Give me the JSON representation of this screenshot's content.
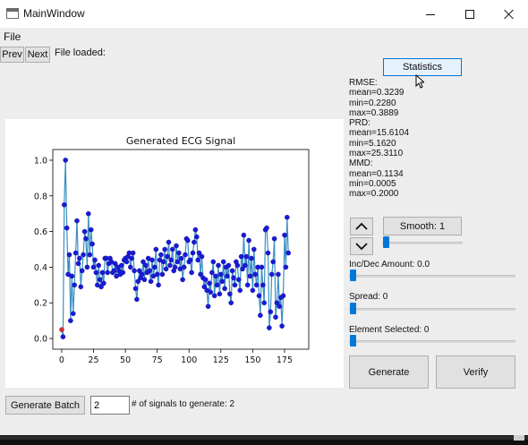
{
  "window": {
    "title": "MainWindow",
    "controls": [
      "minimize-icon",
      "maximize-icon",
      "close-icon"
    ]
  },
  "menu": {
    "file": "File"
  },
  "toolbar": {
    "prev": "Prev",
    "next": "Next",
    "file_loaded": "File loaded:"
  },
  "statistics_button": "Statistics",
  "stats": [
    "RMSE:",
    "mean=0.3239",
    "min=0.2280",
    "max=0.3889",
    "PRD:",
    "mean=15.6104",
    "min=5.1620",
    "max=25.3110",
    "MMD:",
    "mean=0.1134",
    "min=0.0005",
    "max=0.2000"
  ],
  "controls": {
    "smooth_label": "Smooth: 1",
    "smooth_value": 1,
    "incdec_label": "Inc/Dec Amount: 0.0",
    "incdec_value": 0.0,
    "spread_label": "Spread: 0",
    "spread_value": 0,
    "element_label": "Element Selected: 0",
    "element_value": 0,
    "generate": "Generate",
    "verify": "Verify"
  },
  "batch": {
    "button": "Generate Batch",
    "count": "2",
    "label": "# of signals to generate: 2"
  },
  "colors": {
    "line": "#3b8fc4",
    "marker": "#1a1ad6",
    "selected_marker": "#d03030"
  },
  "chart_data": {
    "type": "line",
    "title": "Generated ECG Signal",
    "xlabel": "",
    "ylabel": "",
    "xlim": [
      -7,
      194
    ],
    "ylim": [
      -0.06,
      1.06
    ],
    "xticks": [
      0,
      25,
      50,
      75,
      100,
      125,
      150,
      175
    ],
    "yticks": [
      0.0,
      0.2,
      0.4,
      0.6,
      0.8,
      1.0
    ],
    "selected_index": 0,
    "series": [
      {
        "values": [
          0.05,
          0.01,
          0.75,
          1.0,
          0.62,
          0.36,
          0.47,
          0.1,
          0.35,
          0.14,
          0.3,
          0.48,
          0.66,
          0.42,
          0.45,
          0.29,
          0.38,
          0.47,
          0.6,
          0.56,
          0.4,
          0.7,
          0.47,
          0.61,
          0.53,
          0.4,
          0.44,
          0.37,
          0.3,
          0.41,
          0.33,
          0.29,
          0.37,
          0.31,
          0.45,
          0.45,
          0.37,
          0.42,
          0.45,
          0.43,
          0.37,
          0.38,
          0.42,
          0.35,
          0.4,
          0.38,
          0.36,
          0.41,
          0.37,
          0.44,
          0.45,
          0.43,
          0.46,
          0.48,
          0.4,
          0.45,
          0.48,
          0.38,
          0.28,
          0.22,
          0.32,
          0.38,
          0.34,
          0.36,
          0.43,
          0.33,
          0.41,
          0.37,
          0.45,
          0.38,
          0.32,
          0.44,
          0.35,
          0.4,
          0.5,
          0.36,
          0.3,
          0.44,
          0.47,
          0.36,
          0.43,
          0.5,
          0.39,
          0.46,
          0.54,
          0.41,
          0.44,
          0.5,
          0.38,
          0.4,
          0.52,
          0.43,
          0.48,
          0.39,
          0.45,
          0.33,
          0.4,
          0.47,
          0.56,
          0.55,
          0.43,
          0.44,
          0.37,
          0.48,
          0.54,
          0.61,
          0.57,
          0.44,
          0.48,
          0.36,
          0.46,
          0.34,
          0.29,
          0.33,
          0.27,
          0.18,
          0.31,
          0.26,
          0.37,
          0.43,
          0.24,
          0.35,
          0.3,
          0.41,
          0.25,
          0.36,
          0.32,
          0.43,
          0.28,
          0.4,
          0.35,
          0.41,
          0.25,
          0.2,
          0.38,
          0.34,
          0.3,
          0.43,
          0.41,
          0.33,
          0.27,
          0.46,
          0.39,
          0.58,
          0.41,
          0.46,
          0.3,
          0.55,
          0.35,
          0.45,
          0.27,
          0.5,
          0.36,
          0.3,
          0.4,
          0.24,
          0.13,
          0.4,
          0.3,
          0.2,
          0.61,
          0.62,
          0.48,
          0.06,
          0.15,
          0.36,
          0.43,
          0.56,
          0.12,
          0.2,
          0.36,
          0.18,
          0.23,
          0.07,
          0.24,
          0.58,
          0.4,
          0.68,
          0.48
        ]
      }
    ]
  }
}
